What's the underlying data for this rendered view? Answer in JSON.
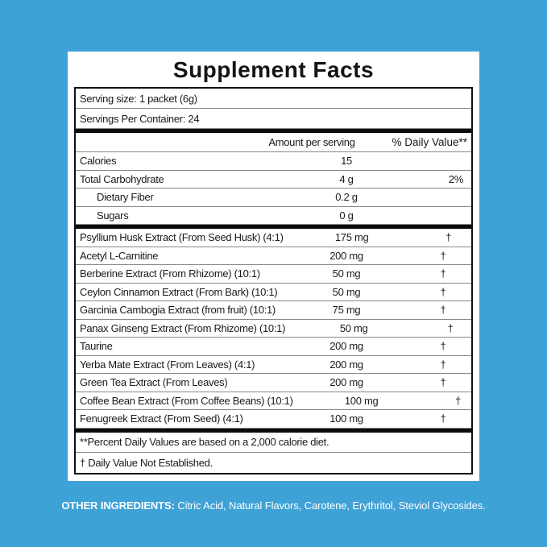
{
  "label": {
    "title": "Supplement Facts",
    "serving_size": "Serving size: 1 packet (6g)",
    "servings_per_container": "Servings Per Container: 24",
    "columns": {
      "amount": "Amount per serving",
      "daily_value": "% Daily Value**"
    },
    "nutrients": [
      {
        "name": "Calories",
        "amount": "15",
        "dv": "",
        "indent": false
      },
      {
        "name": "Total Carbohydrate",
        "amount": "4 g",
        "dv": "2%",
        "indent": false
      },
      {
        "name": "Dietary Fiber",
        "amount": "0.2 g",
        "dv": "",
        "indent": true
      },
      {
        "name": "Sugars",
        "amount": "0 g",
        "dv": "",
        "indent": true
      }
    ],
    "ingredients": [
      {
        "name": "Psyllium Husk Extract (From Seed Husk) (4:1)",
        "amount": "175 mg",
        "dv": "†"
      },
      {
        "name": "Acetyl L-Carnitine",
        "amount": "200 mg",
        "dv": "†"
      },
      {
        "name": "Berberine Extract (From Rhizome) (10:1)",
        "amount": "50 mg",
        "dv": "†"
      },
      {
        "name": "Ceylon Cinnamon Extract (From Bark) (10:1)",
        "amount": "50 mg",
        "dv": "†"
      },
      {
        "name": "Garcinia Cambogia Extract (from fruit) (10:1)",
        "amount": "75 mg",
        "dv": "†"
      },
      {
        "name": "Panax Ginseng Extract (From Rhizome) (10:1)",
        "amount": "50 mg",
        "dv": "†"
      },
      {
        "name": "Taurine",
        "amount": "200 mg",
        "dv": "†"
      },
      {
        "name": "Yerba Mate Extract (From Leaves) (4:1)",
        "amount": "200 mg",
        "dv": "†"
      },
      {
        "name": "Green Tea Extract (From Leaves)",
        "amount": "200 mg",
        "dv": "†"
      },
      {
        "name": "Coffee Bean Extract (From Coffee Beans) (10:1)",
        "amount": "100 mg",
        "dv": "†"
      },
      {
        "name": "Fenugreek Extract (From Seed) (4:1)",
        "amount": "100 mg",
        "dv": "†"
      }
    ],
    "footnotes": [
      "**Percent Daily Values are based on a 2,000 calorie diet.",
      "† Daily Value Not Established."
    ],
    "other_ingredients_label": "OTHER INGREDIENTS:",
    "other_ingredients_text": " Citric Acid, Natural Flavors, Carotene, Erythritol, Steviol Glycosides.",
    "colors": {
      "background": "#3fa2d7",
      "panel": "#ffffff",
      "text": "#1a1a1a"
    }
  }
}
